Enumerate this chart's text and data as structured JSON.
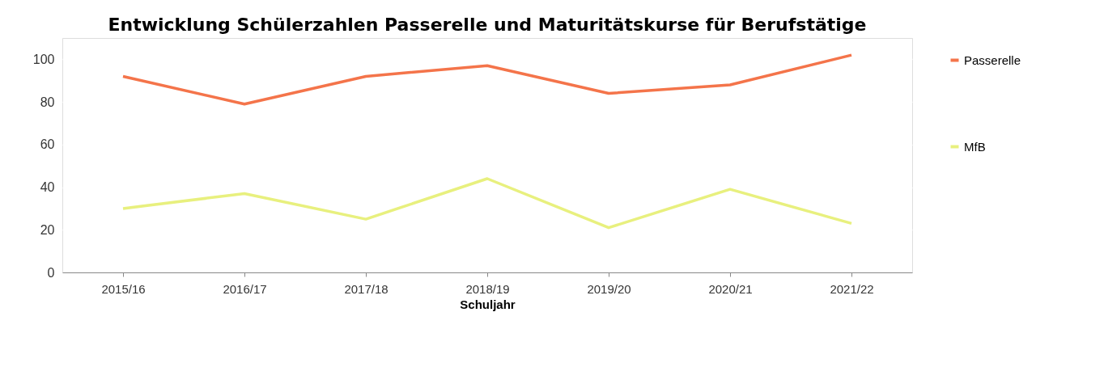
{
  "chart_data": {
    "type": "line",
    "title": "Entwicklung Schülerzahlen Passerelle und Maturitätskurse für Berufstätige",
    "xlabel": "Schuljahr",
    "categories": [
      "2015/16",
      "2016/17",
      "2017/18",
      "2018/19",
      "2019/20",
      "2020/21",
      "2021/22"
    ],
    "series": [
      {
        "name": "Passerelle",
        "color": "#f4744a",
        "values": [
          92,
          79,
          92,
          97,
          84,
          88,
          102
        ]
      },
      {
        "name": "MfB",
        "color": "#e8f07e",
        "values": [
          30,
          37,
          25,
          44,
          21,
          39,
          23
        ]
      }
    ],
    "ylim": [
      0,
      110
    ],
    "yticks": [
      0,
      20,
      40,
      60,
      80,
      100
    ],
    "grid": "y",
    "legend": "right",
    "marker": "none",
    "line_style": "solid"
  }
}
